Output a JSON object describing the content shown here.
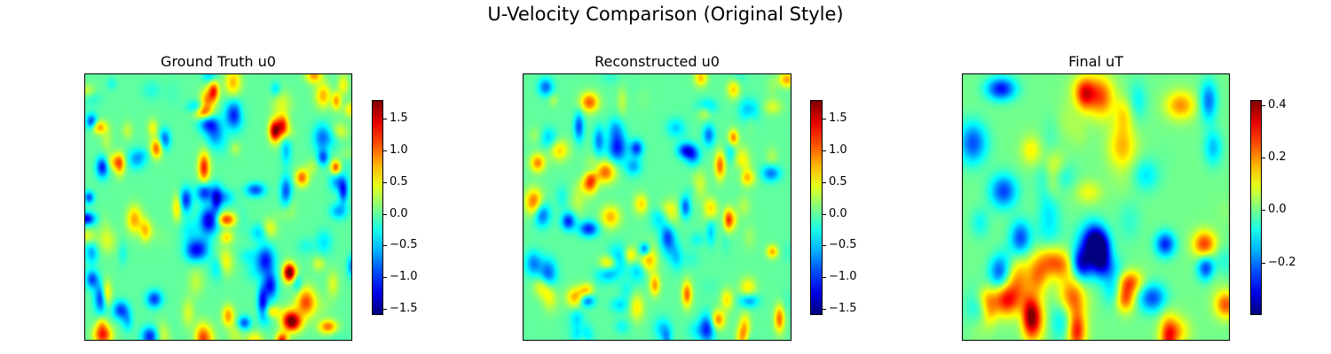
{
  "suptitle": "U-Velocity Comparison (Original Style)",
  "colormap": "jet",
  "chart_data": [
    {
      "type": "heatmap",
      "title": "Ground Truth u0",
      "xlabel": "",
      "ylabel": "",
      "axes_ticks": "off",
      "colorbar": {
        "vmin": -1.6,
        "vmax": 1.8,
        "ticks": [
          1.5,
          1.0,
          0.5,
          0.0,
          -0.5,
          -1.0,
          -1.5
        ],
        "tick_labels": [
          "1.5",
          "1.0",
          "0.5",
          "0.0",
          "−0.5",
          "−1.0",
          "−1.5"
        ]
      },
      "field": {
        "description_type": "random smooth field",
        "amplitude": 1.3,
        "bias": 0.0,
        "features": 140
      }
    },
    {
      "type": "heatmap",
      "title": "Reconstructed u0",
      "xlabel": "",
      "ylabel": "",
      "axes_ticks": "off",
      "colorbar": {
        "vmin": -1.6,
        "vmax": 1.8,
        "ticks": [
          1.5,
          1.0,
          0.5,
          0.0,
          -0.5,
          -1.0,
          -1.5
        ],
        "tick_labels": [
          "1.5",
          "1.0",
          "0.5",
          "0.0",
          "−0.5",
          "−1.0",
          "−1.5"
        ]
      },
      "field": {
        "description_type": "random smooth field",
        "amplitude": 1.1,
        "bias": 0.0,
        "features": 120
      }
    },
    {
      "type": "heatmap",
      "title": "Final uT",
      "xlabel": "",
      "ylabel": "",
      "axes_ticks": "off",
      "colorbar": {
        "vmin": -0.4,
        "vmax": 0.42,
        "ticks": [
          0.4,
          0.2,
          0.0,
          -0.2
        ],
        "tick_labels": [
          "0.4",
          "0.2",
          "0.0",
          "−0.2"
        ]
      },
      "field": {
        "description_type": "random smooth field",
        "amplitude": 0.3,
        "bias": 0.0,
        "features": 70
      }
    }
  ]
}
